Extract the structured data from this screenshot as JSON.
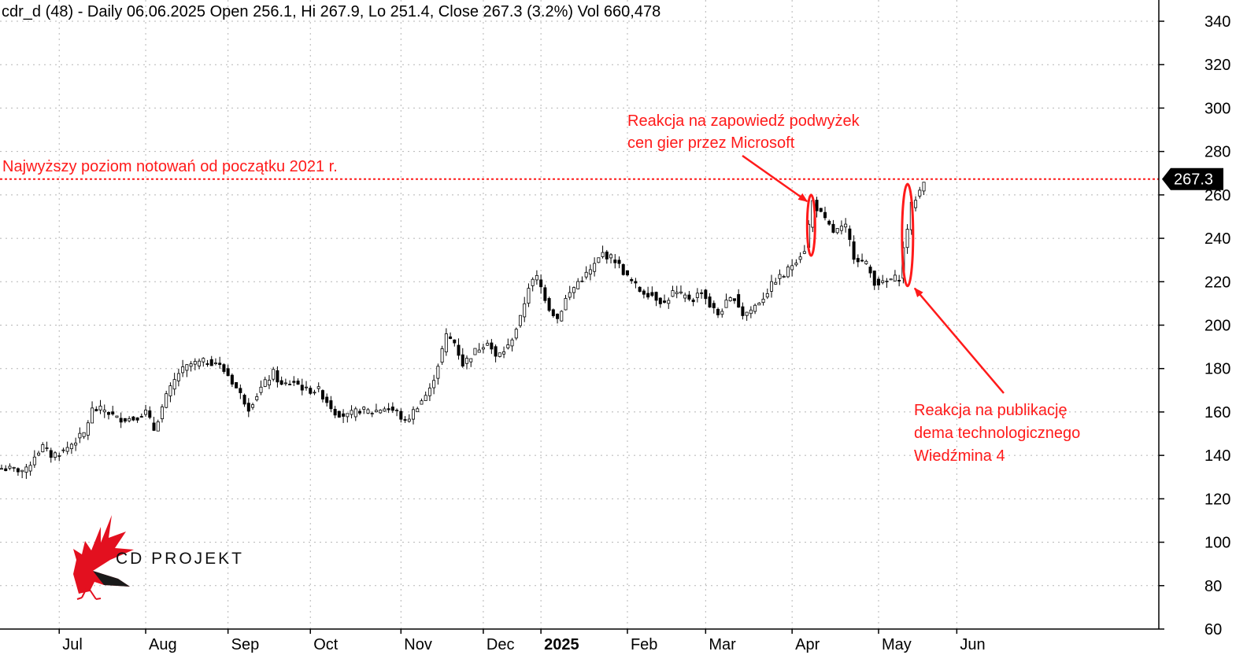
{
  "header": {
    "title": "cdr_d (48) - Daily 06.06.2025 Open 256.1, Hi 267.9, Lo 251.4, Close 267.3 (3.2%) Vol 660,478"
  },
  "annotations": {
    "high_level": "Najwyższy poziom notowań od początku 2021 r.",
    "microsoft_line1": "Reakcja na zapowiedź podwyżek",
    "microsoft_line2": "cen gier przez Microsoft",
    "demo_line1": "Reakcja na publikację",
    "demo_line2": "dema technologicznego",
    "demo_line3": "Wiedźmina 4"
  },
  "logo": {
    "text": "CD PROJEKT"
  },
  "colors": {
    "annotation": "#ff1a1a",
    "grid": "#b0b0b0",
    "candle": "#000000",
    "price_tag": "#000000"
  },
  "chart_data": {
    "type": "candlestick",
    "title": "cdr_d (48) - Daily 06.06.2025 Open 256.1, Hi 267.9, Lo 251.4, Close 267.3 (3.2%) Vol 660,478",
    "ylim": [
      60,
      345
    ],
    "yticks": [
      60,
      80,
      100,
      120,
      140,
      160,
      180,
      200,
      220,
      240,
      260,
      280,
      300,
      320,
      340
    ],
    "ytick_labels": [
      "60",
      "80",
      "100",
      "120",
      "140",
      "160",
      "180",
      "200",
      "220",
      "240",
      "260",
      "280",
      "300",
      "320",
      "340"
    ],
    "xtick_labels": [
      "Jul",
      "Aug",
      "Sep",
      "Oct",
      "Nov",
      "Dec",
      "2025",
      "Feb",
      "Mar",
      "Apr",
      "May",
      "Jun"
    ],
    "last_price": 267.3,
    "last_price_label": "267.3",
    "reference_level": 267.3,
    "close_path": [
      [
        0,
        134
      ],
      [
        6,
        133
      ],
      [
        8,
        140
      ],
      [
        10,
        144
      ],
      [
        12,
        140
      ],
      [
        15,
        142
      ],
      [
        18,
        147
      ],
      [
        20,
        150
      ],
      [
        22,
        161
      ],
      [
        25,
        161
      ],
      [
        28,
        157
      ],
      [
        32,
        157
      ],
      [
        35,
        160
      ],
      [
        37,
        152
      ],
      [
        40,
        167
      ],
      [
        43,
        178
      ],
      [
        46,
        182
      ],
      [
        49,
        183
      ],
      [
        52,
        183
      ],
      [
        55,
        177
      ],
      [
        58,
        168
      ],
      [
        60,
        162
      ],
      [
        63,
        171
      ],
      [
        66,
        178
      ],
      [
        68,
        172
      ],
      [
        71,
        174
      ],
      [
        74,
        170
      ],
      [
        77,
        170
      ],
      [
        79,
        165
      ],
      [
        81,
        160
      ],
      [
        84,
        158
      ],
      [
        87,
        161
      ],
      [
        90,
        160
      ],
      [
        93,
        162
      ],
      [
        96,
        160
      ],
      [
        98,
        155
      ],
      [
        101,
        163
      ],
      [
        104,
        170
      ],
      [
        106,
        182
      ],
      [
        108,
        195
      ],
      [
        110,
        192
      ],
      [
        112,
        182
      ],
      [
        115,
        188
      ],
      [
        118,
        193
      ],
      [
        120,
        185
      ],
      [
        123,
        190
      ],
      [
        126,
        203
      ],
      [
        128,
        218
      ],
      [
        130,
        222
      ],
      [
        133,
        208
      ],
      [
        135,
        203
      ],
      [
        137,
        212
      ],
      [
        140,
        220
      ],
      [
        143,
        225
      ],
      [
        146,
        233
      ],
      [
        149,
        230
      ],
      [
        152,
        222
      ],
      [
        155,
        216
      ],
      [
        158,
        214
      ],
      [
        161,
        210
      ],
      [
        163,
        215
      ],
      [
        166,
        213
      ],
      [
        168,
        212
      ],
      [
        170,
        216
      ],
      [
        172,
        209
      ],
      [
        174,
        205
      ],
      [
        176,
        210
      ],
      [
        178,
        213
      ],
      [
        180,
        205
      ],
      [
        182,
        207
      ],
      [
        185,
        213
      ],
      [
        188,
        221
      ],
      [
        190,
        223
      ],
      [
        192,
        228
      ],
      [
        195,
        235
      ],
      [
        197,
        257
      ],
      [
        200,
        248
      ],
      [
        202,
        243
      ],
      [
        205,
        245
      ],
      [
        207,
        232
      ],
      [
        210,
        228
      ],
      [
        212,
        220
      ],
      [
        214,
        219
      ],
      [
        216,
        221
      ],
      [
        218,
        222
      ],
      [
        219,
        235
      ],
      [
        221,
        255
      ],
      [
        223,
        262
      ],
      [
        224,
        267.3
      ]
    ],
    "annotation_targets": [
      {
        "label": "Reakcja na zapowiedź podwyżek cen gier przez Microsoft",
        "bar_index": 197
      },
      {
        "label": "Reakcja na publikację dema technologicznego Wiedźmina 4",
        "bar_index": 221
      }
    ]
  }
}
